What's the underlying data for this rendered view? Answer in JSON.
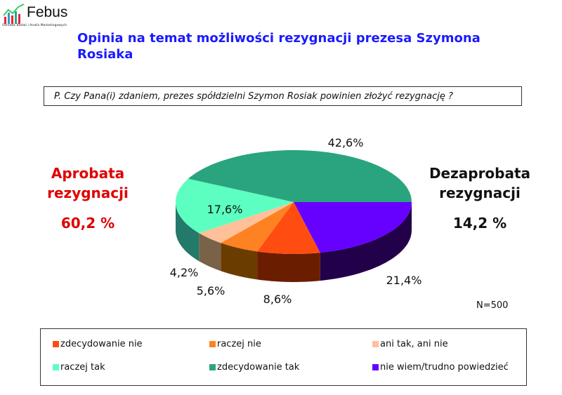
{
  "logo": {
    "name": "Febus",
    "subtitle": "Ośrodek Badań i Analiz Marketingowych"
  },
  "title": "Opinia na temat możliwości rezygnacji prezesa Szymona Rosiaka",
  "question": "P. Czy Pana(i) zdaniem, prezes spółdzielni Szymon Rosiak powinien złożyć rezygnację ?",
  "approval": {
    "label": "Aprobata rezygnacji",
    "line1": "Aprobata",
    "line2": "rezygnacji",
    "value": "60,2 %"
  },
  "disapproval": {
    "label": "Dezaprobata rezygnacji",
    "line1": "Dezaprobata",
    "line2": "rezygnacji",
    "value": "14,2 %"
  },
  "sample": "N=500",
  "chart_data": {
    "type": "pie",
    "title": "Opinia na temat możliwości rezygnacji prezesa Szymona Rosiaka",
    "categories": [
      "nie wiem/trudno powiedzieć",
      "zdecydowanie nie",
      "raczej nie",
      "ani tak, ani nie",
      "raczej tak",
      "zdecydowanie tak"
    ],
    "values": [
      21.4,
      8.6,
      5.6,
      4.2,
      17.6,
      42.6
    ],
    "data_labels": [
      "21,4%",
      "8,6%",
      "5,6%",
      "4,2%",
      "17,6%",
      "42,6%"
    ],
    "colors": [
      "#6600ff",
      "#ff4d12",
      "#ff8222",
      "#ffc09a",
      "#5dffc0",
      "#2aa47f"
    ],
    "side_colors": [
      "#22004a",
      "#6b1d00",
      "#6b3c00",
      "#7a6248",
      "#23796a",
      "#23796a"
    ],
    "legend": [
      "zdecydowanie nie",
      "raczej nie",
      "ani tak, ani nie",
      "raczej tak",
      "zdecydowanie tak",
      "nie wiem/trudno powiedzieć"
    ],
    "legend_colors": [
      "#ff4d12",
      "#ff8222",
      "#ffc09a",
      "#5dffc0",
      "#2aa47f",
      "#6600ff"
    ],
    "legend_position": "bottom"
  }
}
